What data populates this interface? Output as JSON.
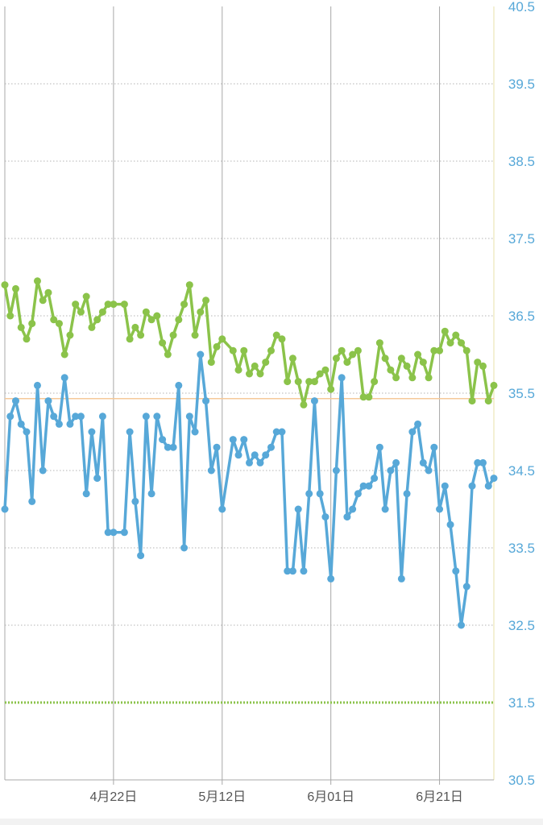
{
  "chart_data": {
    "type": "line",
    "y_ticks": [
      "40.5",
      "39.5",
      "38.5",
      "37.5",
      "36.5",
      "35.5",
      "34.5",
      "33.5",
      "32.5",
      "31.5",
      "30.5"
    ],
    "ylim": [
      30.5,
      40.5
    ],
    "x_ticks": [
      "4月22日",
      "5月12日",
      "6月01日",
      "6月21日"
    ],
    "x_tick_days": [
      20,
      40,
      60,
      80
    ],
    "xlim": [
      0,
      90
    ],
    "grid": true,
    "reference_lines": [
      {
        "value": 35.43,
        "style": "solid",
        "color": "#f5c99a"
      },
      {
        "value": 31.5,
        "style": "dotted",
        "color": "#8bc34a"
      }
    ],
    "series": [
      {
        "color": "#8bc34a",
        "x": [
          0,
          1,
          2,
          3,
          4,
          5,
          6,
          7,
          8,
          9,
          10,
          11,
          12,
          13,
          14,
          15,
          16,
          17,
          18,
          19,
          20,
          22,
          23,
          24,
          25,
          26,
          27,
          28,
          29,
          30,
          31,
          32,
          33,
          34,
          35,
          36,
          37,
          38,
          39,
          40,
          42,
          43,
          44,
          45,
          46,
          47,
          48,
          49,
          50,
          51,
          52,
          53,
          54,
          55,
          56,
          57,
          58,
          59,
          60,
          61,
          62,
          63,
          64,
          65,
          66,
          67,
          68,
          69,
          70,
          71,
          72,
          73,
          74,
          75,
          76,
          77,
          78,
          79,
          80,
          81,
          82,
          83,
          84,
          85,
          86,
          87,
          88,
          89,
          90
        ],
        "values": [
          36.9,
          36.5,
          36.85,
          36.35,
          36.2,
          36.4,
          36.95,
          36.7,
          36.8,
          36.45,
          36.4,
          36.0,
          36.25,
          36.65,
          36.55,
          36.75,
          36.35,
          36.45,
          36.55,
          36.65,
          36.65,
          36.65,
          36.2,
          36.35,
          36.25,
          36.55,
          36.45,
          36.5,
          36.15,
          36.0,
          36.25,
          36.45,
          36.65,
          36.9,
          36.25,
          36.55,
          36.7,
          35.9,
          36.1,
          36.2,
          36.05,
          35.8,
          36.05,
          35.75,
          35.85,
          35.75,
          35.9,
          36.05,
          36.25,
          36.2,
          35.65,
          35.95,
          35.65,
          35.35,
          35.65,
          35.65,
          35.75,
          35.8,
          35.55,
          35.95,
          36.05,
          35.9,
          36.0,
          36.05,
          35.45,
          35.45,
          35.65,
          36.15,
          35.95,
          35.8,
          35.7,
          35.95,
          35.85,
          35.7,
          36.0,
          35.9,
          35.7,
          36.05,
          36.05,
          36.3,
          36.15,
          36.25,
          36.15,
          36.05,
          35.4,
          35.9,
          35.85,
          35.4,
          35.6
        ]
      },
      {
        "color": "#57a8d8",
        "x": [
          0,
          1,
          2,
          3,
          4,
          5,
          6,
          7,
          8,
          9,
          10,
          11,
          12,
          13,
          14,
          15,
          16,
          17,
          18,
          19,
          20,
          22,
          23,
          24,
          25,
          26,
          27,
          28,
          29,
          30,
          31,
          32,
          33,
          34,
          35,
          36,
          37,
          38,
          39,
          40,
          42,
          43,
          44,
          45,
          46,
          47,
          48,
          49,
          50,
          51,
          52,
          53,
          54,
          55,
          56,
          57,
          58,
          59,
          60,
          61,
          62,
          63,
          64,
          65,
          66,
          67,
          68,
          69,
          70,
          71,
          72,
          73,
          74,
          75,
          76,
          77,
          78,
          79,
          80,
          81,
          82,
          83,
          84,
          85,
          86,
          87,
          88,
          89,
          90
        ],
        "values": [
          34.0,
          35.2,
          35.4,
          35.1,
          35.0,
          34.1,
          35.6,
          34.5,
          35.4,
          35.2,
          35.1,
          35.7,
          35.1,
          35.2,
          35.2,
          34.2,
          35.0,
          34.4,
          35.2,
          33.7,
          33.7,
          33.7,
          35.0,
          34.1,
          33.4,
          35.2,
          34.2,
          35.2,
          34.9,
          34.8,
          34.8,
          35.6,
          33.5,
          35.2,
          35.0,
          36.0,
          35.4,
          34.5,
          34.8,
          34.0,
          34.9,
          34.7,
          34.9,
          34.6,
          34.7,
          34.6,
          34.7,
          34.8,
          35.0,
          35.0,
          33.2,
          33.2,
          34.0,
          33.2,
          34.2,
          35.4,
          34.2,
          33.9,
          33.1,
          34.5,
          35.7,
          33.9,
          34.0,
          34.2,
          34.3,
          34.3,
          34.4,
          34.8,
          34.0,
          34.5,
          34.6,
          33.1,
          34.2,
          35.0,
          35.1,
          34.6,
          34.5,
          34.8,
          34.0,
          34.3,
          33.8,
          33.2,
          32.5,
          33.0,
          34.3,
          34.6,
          34.6,
          34.3,
          34.4
        ]
      }
    ]
  }
}
